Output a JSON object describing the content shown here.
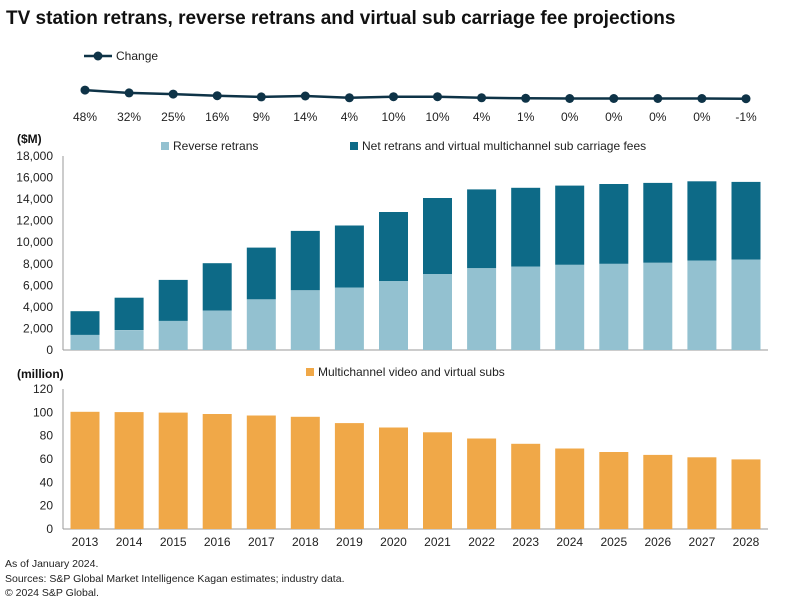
{
  "title": "TV station retrans, reverse retrans and virtual sub carriage fee projections",
  "colors": {
    "light_blue": "#93C1D0",
    "dark_teal": "#0D6A87",
    "orange": "#F0A848",
    "line": "#0E3347",
    "axis": "#9a9a9a"
  },
  "chart_data": [
    {
      "type": "line",
      "legend": [
        "Change"
      ],
      "x": [
        "2013",
        "2014",
        "2015",
        "2016",
        "2017",
        "2018",
        "2019",
        "2020",
        "2021",
        "2022",
        "2023",
        "2024",
        "2025",
        "2026",
        "2027",
        "2028"
      ],
      "series": [
        {
          "name": "Change",
          "values": [
            48,
            32,
            25,
            16,
            9,
            14,
            4,
            10,
            10,
            4,
            1,
            0,
            0,
            0,
            0,
            -1
          ]
        }
      ],
      "data_labels": [
        "48%",
        "32%",
        "25%",
        "16%",
        "9%",
        "14%",
        "4%",
        "10%",
        "10%",
        "4%",
        "1%",
        "0%",
        "0%",
        "0%",
        "0%",
        "-1%"
      ]
    },
    {
      "type": "bar",
      "stacked": true,
      "ylabel": "($M)",
      "ylim": [
        0,
        18000
      ],
      "yticks": [
        "0",
        "2,000",
        "4,000",
        "6,000",
        "8,000",
        "10,000",
        "12,000",
        "14,000",
        "16,000",
        "18,000"
      ],
      "categories": [
        "2013",
        "2014",
        "2015",
        "2016",
        "2017",
        "2018",
        "2019",
        "2020",
        "2021",
        "2022",
        "2023",
        "2024",
        "2025",
        "2026",
        "2027",
        "2028"
      ],
      "series": [
        {
          "name": "Reverse retrans",
          "values": [
            1400,
            1850,
            2700,
            3650,
            4700,
            5550,
            5800,
            6400,
            7050,
            7600,
            7750,
            7900,
            8000,
            8100,
            8300,
            8400
          ]
        },
        {
          "name": "Net retrans and virtual multichannel sub carriage fees",
          "values": [
            2200,
            3000,
            3800,
            4400,
            4800,
            5500,
            5750,
            6400,
            7050,
            7300,
            7300,
            7350,
            7400,
            7400,
            7350,
            7200
          ]
        }
      ],
      "legend_position": "top"
    },
    {
      "type": "bar",
      "ylabel": "(million)",
      "ylim": [
        0,
        120
      ],
      "yticks": [
        "0",
        "20",
        "40",
        "60",
        "80",
        "100",
        "120"
      ],
      "categories": [
        "2013",
        "2014",
        "2015",
        "2016",
        "2017",
        "2018",
        "2019",
        "2020",
        "2021",
        "2022",
        "2023",
        "2024",
        "2025",
        "2026",
        "2027",
        "2028"
      ],
      "series": [
        {
          "name": "Multichannel video and virtual subs",
          "values": [
            100.5,
            100.2,
            99.8,
            98.6,
            97.3,
            96.2,
            90.8,
            87.0,
            82.9,
            77.6,
            73.0,
            69.0,
            66.0,
            63.5,
            61.5,
            59.7
          ]
        }
      ],
      "legend_position": "top"
    }
  ],
  "footer": {
    "as_of": "As of January 2024.",
    "sources": "Sources: S&P Global Market Intelligence Kagan estimates; industry data.",
    "copyright": "© 2024 S&P Global."
  }
}
